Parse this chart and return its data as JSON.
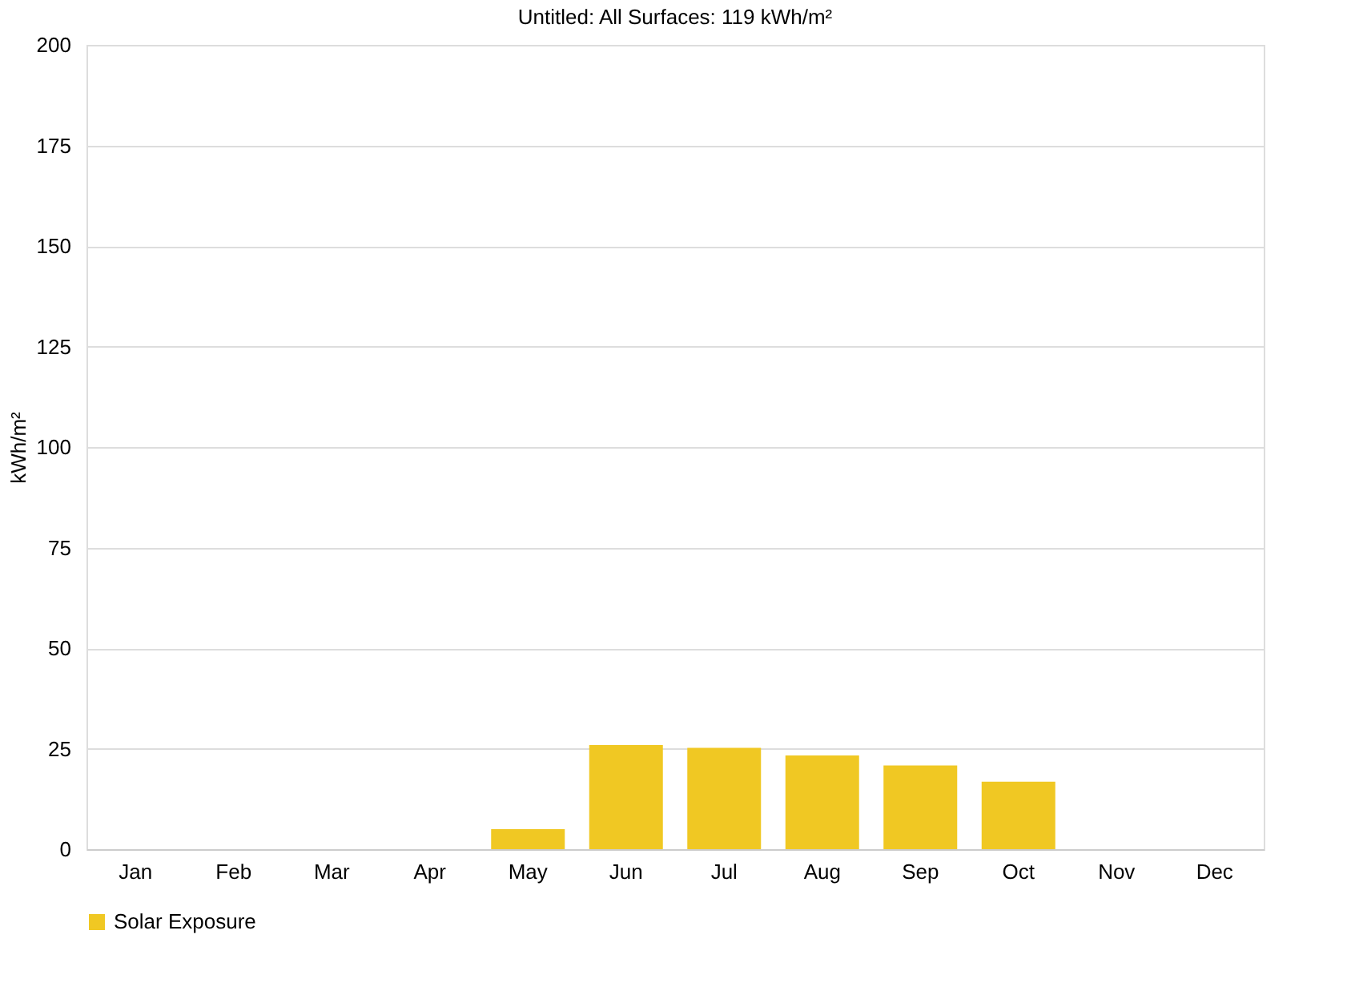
{
  "chart_data": {
    "type": "bar",
    "title": "Untitled: All Surfaces: 119 kWh/m²",
    "ylabel": "kWh/m²",
    "categories": [
      "Jan",
      "Feb",
      "Mar",
      "Apr",
      "May",
      "Jun",
      "Jul",
      "Aug",
      "Sep",
      "Oct",
      "Nov",
      "Dec"
    ],
    "series": [
      {
        "name": "Solar Exposure",
        "color": "#f0c823",
        "values": [
          0,
          0,
          0,
          0,
          5.0,
          25.9,
          25.2,
          23.3,
          20.8,
          16.8,
          0,
          0
        ]
      }
    ],
    "ylim": [
      0,
      200
    ],
    "yticks": [
      0,
      25,
      50,
      75,
      100,
      125,
      150,
      175,
      200
    ],
    "grid": "y",
    "legend": "bottom"
  }
}
